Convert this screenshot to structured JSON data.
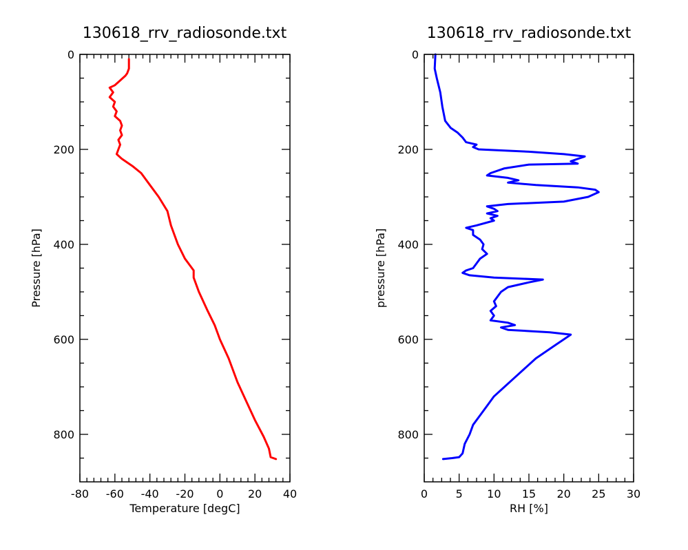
{
  "chart_data": [
    {
      "type": "line",
      "title": "130618_rrv_radiosonde.txt",
      "xlabel": "Temperature [degC]",
      "ylabel": "Pressure [hPa]",
      "xlim": [
        -80,
        40
      ],
      "ylim": [
        0,
        900
      ],
      "y_inverted": true,
      "grid": false,
      "x_ticks": [
        -80,
        -60,
        -40,
        -20,
        0,
        20,
        40
      ],
      "y_ticks": [
        0,
        200,
        400,
        600,
        800
      ],
      "series": [
        {
          "color": "#ff0000",
          "points": [
            [
              -52,
              10
            ],
            [
              -52,
              30
            ],
            [
              -53,
              40
            ],
            [
              -54,
              45
            ],
            [
              -57,
              55
            ],
            [
              -60,
              65
            ],
            [
              -63,
              70
            ],
            [
              -61,
              80
            ],
            [
              -63,
              90
            ],
            [
              -60,
              100
            ],
            [
              -61,
              110
            ],
            [
              -59,
              120
            ],
            [
              -60,
              130
            ],
            [
              -57,
              140
            ],
            [
              -56,
              150
            ],
            [
              -57,
              160
            ],
            [
              -56,
              170
            ],
            [
              -58,
              180
            ],
            [
              -57,
              190
            ],
            [
              -58,
              200
            ],
            [
              -59,
              210
            ],
            [
              -56,
              220
            ],
            [
              -50,
              235
            ],
            [
              -45,
              250
            ],
            [
              -40,
              275
            ],
            [
              -35,
              300
            ],
            [
              -30,
              330
            ],
            [
              -28,
              360
            ],
            [
              -24,
              400
            ],
            [
              -20,
              430
            ],
            [
              -15,
              455
            ],
            [
              -15,
              470
            ],
            [
              -12,
              500
            ],
            [
              -7,
              540
            ],
            [
              -3,
              570
            ],
            [
              -1,
              590
            ],
            [
              0,
              600
            ],
            [
              5,
              640
            ],
            [
              10,
              690
            ],
            [
              15,
              730
            ],
            [
              20,
              770
            ],
            [
              25,
              805
            ],
            [
              28,
              830
            ],
            [
              29,
              848
            ],
            [
              32,
              852
            ]
          ]
        }
      ]
    },
    {
      "type": "line",
      "title": "130618_rrv_radiosonde.txt",
      "xlabel": "RH [%]",
      "ylabel": "pressure [hPa]",
      "xlim": [
        0,
        30
      ],
      "ylim": [
        0,
        900
      ],
      "y_inverted": true,
      "grid": false,
      "x_ticks": [
        0,
        5,
        10,
        15,
        20,
        25,
        30
      ],
      "y_ticks": [
        0,
        200,
        400,
        600,
        800
      ],
      "series": [
        {
          "color": "#0000ff",
          "points": [
            [
              1.6,
              0
            ],
            [
              1.5,
              30
            ],
            [
              1.8,
              50
            ],
            [
              2.3,
              80
            ],
            [
              2.6,
              110
            ],
            [
              3.0,
              140
            ],
            [
              3.8,
              155
            ],
            [
              4.8,
              165
            ],
            [
              5.5,
              175
            ],
            [
              6.0,
              185
            ],
            [
              7.5,
              190
            ],
            [
              7.0,
              195
            ],
            [
              7.8,
              200
            ],
            [
              15.0,
              205
            ],
            [
              20.0,
              210
            ],
            [
              23.0,
              215
            ],
            [
              21.0,
              225
            ],
            [
              22.0,
              230
            ],
            [
              15.0,
              232
            ],
            [
              11.5,
              240
            ],
            [
              9.5,
              250
            ],
            [
              9.0,
              255
            ],
            [
              12.0,
              260
            ],
            [
              13.5,
              265
            ],
            [
              12.0,
              270
            ],
            [
              16.0,
              275
            ],
            [
              22.0,
              280
            ],
            [
              24.5,
              285
            ],
            [
              25.0,
              290
            ],
            [
              23.5,
              300
            ],
            [
              20.0,
              310
            ],
            [
              12.0,
              315
            ],
            [
              9.0,
              320
            ],
            [
              10.0,
              325
            ],
            [
              10.5,
              330
            ],
            [
              9.0,
              335
            ],
            [
              10.5,
              340
            ],
            [
              9.5,
              345
            ],
            [
              10.0,
              350
            ],
            [
              7.5,
              360
            ],
            [
              6.0,
              365
            ],
            [
              7.0,
              370
            ],
            [
              7.0,
              380
            ],
            [
              8.0,
              390
            ],
            [
              8.5,
              400
            ],
            [
              8.3,
              410
            ],
            [
              9.0,
              420
            ],
            [
              8.0,
              430
            ],
            [
              7.5,
              440
            ],
            [
              7.0,
              450
            ],
            [
              6.0,
              455
            ],
            [
              5.5,
              460
            ],
            [
              6.5,
              465
            ],
            [
              10.0,
              470
            ],
            [
              17.0,
              474
            ],
            [
              15.0,
              480
            ],
            [
              12.0,
              490
            ],
            [
              11.0,
              500
            ],
            [
              10.5,
              510
            ],
            [
              10.0,
              520
            ],
            [
              10.3,
              530
            ],
            [
              9.5,
              540
            ],
            [
              10.0,
              550
            ],
            [
              9.5,
              560
            ],
            [
              12.0,
              565
            ],
            [
              13.0,
              570
            ],
            [
              11.0,
              575
            ],
            [
              12.0,
              580
            ],
            [
              18.0,
              585
            ],
            [
              21.0,
              590
            ],
            [
              20.0,
              600
            ],
            [
              19.0,
              610
            ],
            [
              18.0,
              620
            ],
            [
              16.0,
              640
            ],
            [
              14.5,
              660
            ],
            [
              13.0,
              680
            ],
            [
              11.5,
              700
            ],
            [
              10.0,
              720
            ],
            [
              9.0,
              740
            ],
            [
              8.0,
              760
            ],
            [
              7.0,
              780
            ],
            [
              6.5,
              800
            ],
            [
              5.8,
              820
            ],
            [
              5.5,
              840
            ],
            [
              5.0,
              848
            ],
            [
              4.0,
              850
            ],
            [
              2.7,
              852
            ]
          ]
        }
      ]
    }
  ]
}
